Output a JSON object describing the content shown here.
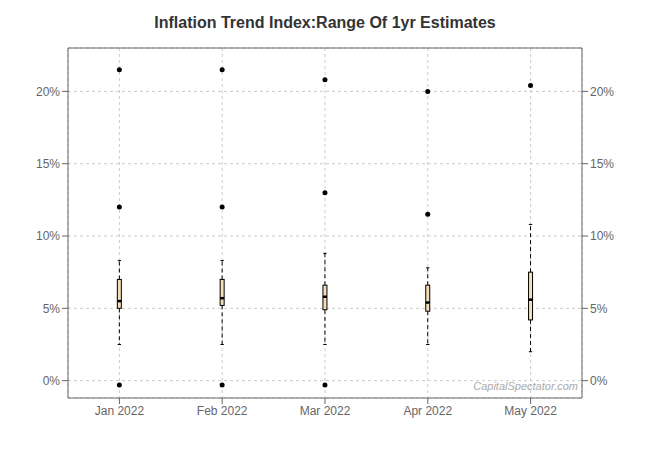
{
  "chart_data": {
    "type": "box",
    "title": "Inflation Trend Index:Range Of 1yr Estimates",
    "categories": [
      "Jan 2022",
      "Feb 2022",
      "Mar 2022",
      "Apr 2022",
      "May 2022"
    ],
    "boxes": [
      {
        "q1": 5.0,
        "median": 5.5,
        "q3": 7.0,
        "whisker_low": 2.5,
        "whisker_high": 8.3,
        "outliers": [
          12.0,
          21.5,
          -0.3
        ]
      },
      {
        "q1": 5.2,
        "median": 5.7,
        "q3": 7.0,
        "whisker_low": 2.5,
        "whisker_high": 8.3,
        "outliers": [
          12.0,
          21.5,
          -0.3
        ]
      },
      {
        "q1": 4.9,
        "median": 5.8,
        "q3": 6.6,
        "whisker_low": 2.5,
        "whisker_high": 8.8,
        "outliers": [
          13.0,
          20.8,
          -0.3
        ]
      },
      {
        "q1": 4.8,
        "median": 5.4,
        "q3": 6.6,
        "whisker_low": 2.5,
        "whisker_high": 7.8,
        "outliers": [
          11.5,
          20.0
        ]
      },
      {
        "q1": 4.2,
        "median": 5.6,
        "q3": 7.5,
        "whisker_low": 2.0,
        "whisker_high": 10.8,
        "outliers": [
          20.4
        ]
      }
    ],
    "color": "#F5DEBA",
    "ylim": [
      -1.2,
      23.0
    ],
    "yticks": [
      {
        "value": 0,
        "label": "0%"
      },
      {
        "value": 5,
        "label": "5%"
      },
      {
        "value": 10,
        "label": "10%"
      },
      {
        "value": 15,
        "label": "15%"
      },
      {
        "value": 20,
        "label": "20%"
      }
    ],
    "y2lim": [
      -1.2,
      23.0
    ],
    "y2ticks": [
      {
        "value": 0,
        "label": "0%"
      },
      {
        "value": 5,
        "label": "5%"
      },
      {
        "value": 10,
        "label": "10%"
      },
      {
        "value": 15,
        "label": "15%"
      },
      {
        "value": 20,
        "label": "20%"
      }
    ],
    "grid": true,
    "annotation": "CapitalSpectator.com"
  }
}
